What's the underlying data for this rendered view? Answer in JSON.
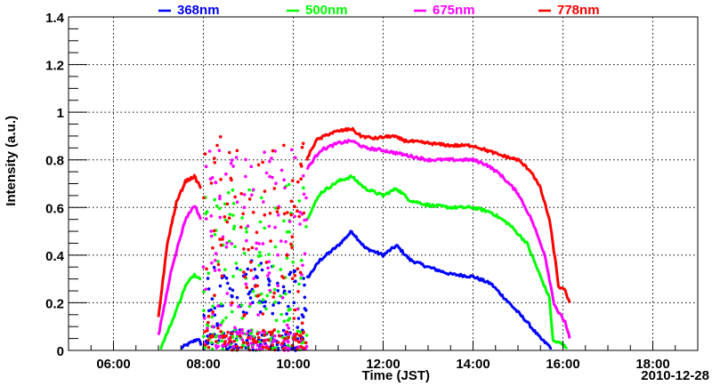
{
  "chart_data": {
    "type": "scatter",
    "title": "",
    "xlabel": "Time (JST)",
    "ylabel": "Intensity (a.u.)",
    "date_label": "2010-12-28",
    "xlim": [
      5,
      19
    ],
    "ylim": [
      0,
      1.4
    ],
    "grid": true,
    "legend_placement": "top",
    "x_ticks": [
      {
        "v": 6,
        "label": "06:00"
      },
      {
        "v": 8,
        "label": "08:00"
      },
      {
        "v": 10,
        "label": "10:00"
      },
      {
        "v": 12,
        "label": "12:00"
      },
      {
        "v": 14,
        "label": "14:00"
      },
      {
        "v": 16,
        "label": "16:00"
      },
      {
        "v": 18,
        "label": "18:00"
      }
    ],
    "y_ticks": [
      {
        "v": 0,
        "label": "0"
      },
      {
        "v": 0.2,
        "label": "0.2"
      },
      {
        "v": 0.4,
        "label": "0.4"
      },
      {
        "v": 0.6,
        "label": "0.6"
      },
      {
        "v": 0.8,
        "label": "0.8"
      },
      {
        "v": 1,
        "label": "1"
      },
      {
        "v": 1.2,
        "label": "1.2"
      },
      {
        "v": 1.4,
        "label": "1.4"
      }
    ],
    "noisy_window": [
      8.0,
      10.3
    ],
    "series": [
      {
        "name": "368nm",
        "color": "#0000ff",
        "noise_max": 0.38,
        "segments": [
          [
            [
              7.5,
              0.01
            ],
            [
              7.9,
              0.05
            ],
            [
              7.95,
              0.02
            ]
          ],
          [
            [
              10.3,
              0.3
            ],
            [
              10.6,
              0.38
            ],
            [
              11.0,
              0.44
            ],
            [
              11.3,
              0.5
            ],
            [
              11.6,
              0.43
            ],
            [
              12.0,
              0.4
            ],
            [
              12.3,
              0.44
            ],
            [
              12.6,
              0.38
            ],
            [
              13.0,
              0.35
            ],
            [
              13.5,
              0.32
            ],
            [
              14.0,
              0.31
            ],
            [
              14.4,
              0.28
            ],
            [
              14.8,
              0.2
            ],
            [
              15.2,
              0.12
            ],
            [
              15.5,
              0.05
            ],
            [
              15.75,
              0.01
            ]
          ]
        ]
      },
      {
        "name": "500nm",
        "color": "#00ff00",
        "noise_max": 0.7,
        "segments": [
          [
            [
              7.05,
              0.01
            ],
            [
              7.3,
              0.12
            ],
            [
              7.6,
              0.27
            ],
            [
              7.8,
              0.32
            ],
            [
              7.95,
              0.3
            ]
          ],
          [
            [
              10.3,
              0.55
            ],
            [
              10.6,
              0.66
            ],
            [
              11.0,
              0.71
            ],
            [
              11.3,
              0.73
            ],
            [
              11.6,
              0.68
            ],
            [
              12.0,
              0.65
            ],
            [
              12.3,
              0.68
            ],
            [
              12.6,
              0.63
            ],
            [
              13.0,
              0.61
            ],
            [
              13.5,
              0.6
            ],
            [
              14.0,
              0.6
            ],
            [
              14.4,
              0.58
            ],
            [
              14.8,
              0.53
            ],
            [
              15.2,
              0.45
            ],
            [
              15.5,
              0.31
            ],
            [
              15.7,
              0.22
            ],
            [
              15.78,
              0.04
            ],
            [
              15.95,
              0.03
            ],
            [
              16.1,
              0.01
            ]
          ]
        ]
      },
      {
        "name": "675nm",
        "color": "#ff00ff",
        "noise_max": 0.85,
        "segments": [
          [
            [
              7.0,
              0.06
            ],
            [
              7.3,
              0.35
            ],
            [
              7.6,
              0.55
            ],
            [
              7.8,
              0.61
            ],
            [
              7.95,
              0.55
            ]
          ],
          [
            [
              10.3,
              0.76
            ],
            [
              10.6,
              0.84
            ],
            [
              11.0,
              0.87
            ],
            [
              11.3,
              0.88
            ],
            [
              11.6,
              0.85
            ],
            [
              12.0,
              0.84
            ],
            [
              12.5,
              0.82
            ],
            [
              13.0,
              0.8
            ],
            [
              13.5,
              0.8
            ],
            [
              14.0,
              0.8
            ],
            [
              14.3,
              0.78
            ],
            [
              14.6,
              0.74
            ],
            [
              15.0,
              0.66
            ],
            [
              15.3,
              0.55
            ],
            [
              15.6,
              0.4
            ],
            [
              15.8,
              0.2
            ],
            [
              15.9,
              0.16
            ],
            [
              16.05,
              0.12
            ],
            [
              16.15,
              0.05
            ]
          ]
        ]
      },
      {
        "name": "778nm",
        "color": "#ff0000",
        "noise_max": 0.9,
        "segments": [
          [
            [
              7.0,
              0.14
            ],
            [
              7.2,
              0.45
            ],
            [
              7.4,
              0.62
            ],
            [
              7.6,
              0.71
            ],
            [
              7.8,
              0.73
            ],
            [
              7.95,
              0.68
            ]
          ],
          [
            [
              10.3,
              0.8
            ],
            [
              10.5,
              0.88
            ],
            [
              10.8,
              0.91
            ],
            [
              11.0,
              0.92
            ],
            [
              11.3,
              0.93
            ],
            [
              11.5,
              0.9
            ],
            [
              11.8,
              0.89
            ],
            [
              12.2,
              0.9
            ],
            [
              12.5,
              0.88
            ],
            [
              13.0,
              0.87
            ],
            [
              13.5,
              0.86
            ],
            [
              14.0,
              0.86
            ],
            [
              14.3,
              0.84
            ],
            [
              14.6,
              0.82
            ],
            [
              15.0,
              0.8
            ],
            [
              15.3,
              0.75
            ],
            [
              15.5,
              0.68
            ],
            [
              15.7,
              0.55
            ],
            [
              15.85,
              0.35
            ],
            [
              15.9,
              0.27
            ],
            [
              16.05,
              0.25
            ],
            [
              16.15,
              0.2
            ]
          ]
        ]
      }
    ]
  }
}
